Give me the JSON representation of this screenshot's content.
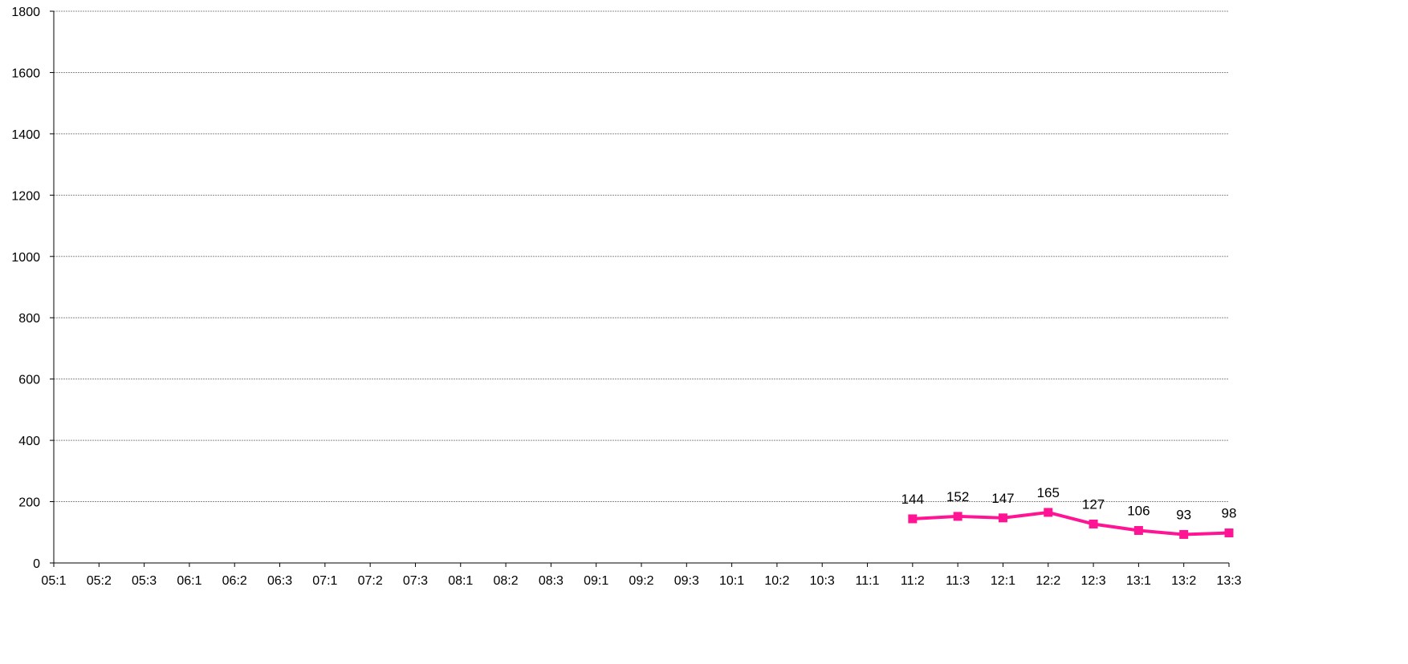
{
  "chart_data": {
    "type": "line",
    "title": "",
    "xlabel": "",
    "ylabel": "",
    "categories": [
      "05:1",
      "05:2",
      "05:3",
      "06:1",
      "06:2",
      "06:3",
      "07:1",
      "07:2",
      "07:3",
      "08:1",
      "08:2",
      "08:3",
      "09:1",
      "09:2",
      "09:3",
      "10:1",
      "10:2",
      "10:3",
      "11:1",
      "11:2",
      "11:3",
      "12:1",
      "12:2",
      "12:3",
      "13:1",
      "13:2",
      "13:3"
    ],
    "ylim": [
      0,
      1800
    ],
    "yticks": [
      0,
      200,
      400,
      600,
      800,
      1000,
      1200,
      1400,
      1600,
      1800
    ],
    "grid": true,
    "legend": "none",
    "series": [
      {
        "color": "#ff1493",
        "marker": "square",
        "values": [
          null,
          null,
          null,
          null,
          null,
          null,
          null,
          null,
          null,
          null,
          null,
          null,
          null,
          null,
          null,
          null,
          null,
          null,
          null,
          144,
          152,
          147,
          165,
          127,
          106,
          93,
          98
        ],
        "data_labels": [
          "",
          "",
          "",
          "",
          "",
          "",
          "",
          "",
          "",
          "",
          "",
          "",
          "",
          "",
          "",
          "",
          "",
          "",
          "",
          "144",
          "152",
          "147",
          "165",
          "127",
          "106",
          "93",
          "98"
        ]
      }
    ]
  }
}
